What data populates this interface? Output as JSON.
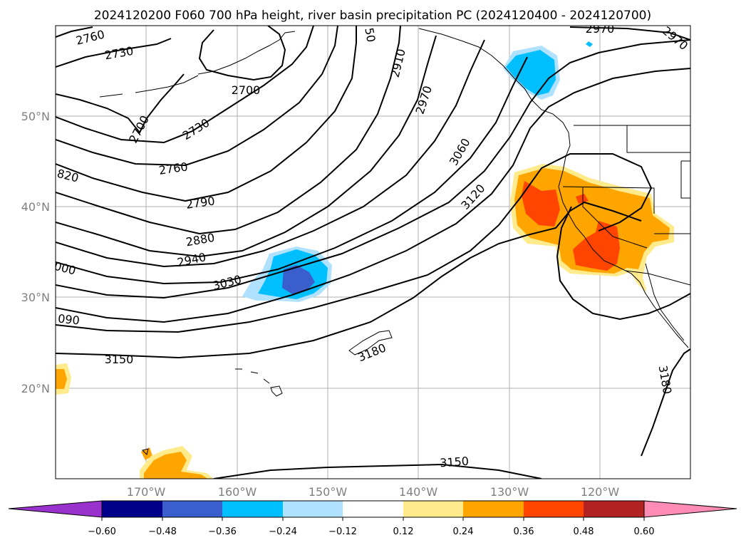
{
  "title": "2024120200 F060 700 hPa height, river basin precipitation PC (2024120400 - 2024120700)",
  "lat_labels": [
    "50°N",
    "40°N",
    "30°N",
    "20°N"
  ],
  "lon_labels": [
    "170°W",
    "160°W",
    "150°W",
    "140°W",
    "130°W",
    "120°W"
  ],
  "contour_labels": [
    "2760",
    "2730",
    "2700",
    "2730",
    "2700",
    "2760",
    "2790",
    "2880",
    "2940",
    "3030",
    "2970",
    "2910",
    "3060",
    "3120",
    "2970",
    "2970",
    "3180",
    "3150",
    "3150",
    "3180",
    "090",
    "000",
    "820",
    "50"
  ],
  "colorbar": {
    "ticks": [
      "−0.60",
      "−0.48",
      "−0.36",
      "−0.24",
      "−0.12",
      "0.12",
      "0.24",
      "0.36",
      "0.48",
      "0.60"
    ],
    "colors": [
      "#9932cc",
      "#00008b",
      "#3a5fcd",
      "#00bfff",
      "#b0e2ff",
      "#ffffff",
      "#ffeb8c",
      "#ffa500",
      "#ff4500",
      "#b22222",
      "#ff8cb4"
    ]
  }
}
